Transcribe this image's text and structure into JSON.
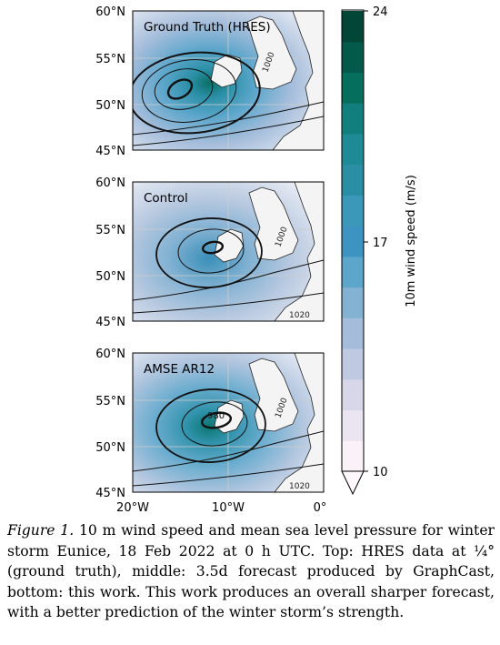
{
  "panels": [
    {
      "label": "Ground Truth (HRES)",
      "contours": [
        "",
        "",
        "1000"
      ],
      "low_label": ""
    },
    {
      "label": "Control",
      "contours": [
        "1000",
        "1020"
      ],
      "low_label": ""
    },
    {
      "label": "AMSE AR12",
      "contours": [
        "980",
        "1000",
        "1020"
      ],
      "low_label": "980"
    }
  ],
  "lat_ticks": [
    "60°N",
    "55°N",
    "50°N",
    "45°N"
  ],
  "lon_ticks": [
    "20°W",
    "10°W",
    "0°"
  ],
  "colorbar": {
    "label": "10m wind speed (m/s)",
    "ticks": [
      "24",
      "17",
      "10"
    ],
    "range": [
      10,
      24
    ],
    "colors": [
      "#faf2f8",
      "#ebe4f1",
      "#d8d7e9",
      "#c0c9e2",
      "#a5bddb",
      "#83b2d3",
      "#5ca6cb",
      "#3d93c2",
      "#3b98b8",
      "#2a8fa5",
      "#1d8a96",
      "#117f7d",
      "#066e5d",
      "#035a4b",
      "#014636"
    ]
  },
  "caption": {
    "label": "Figure 1.",
    "text": " 10 m wind speed and mean sea level pressure for winter storm Eunice, 18 Feb 2022 at 0 h UTC. Top: HRES data at ¼° (ground truth), middle: 3.5d forecast produced by GraphCast, bottom: this work. This work produces an overall sharper forecast, with a better prediction of the winter storm’s strength."
  }
}
